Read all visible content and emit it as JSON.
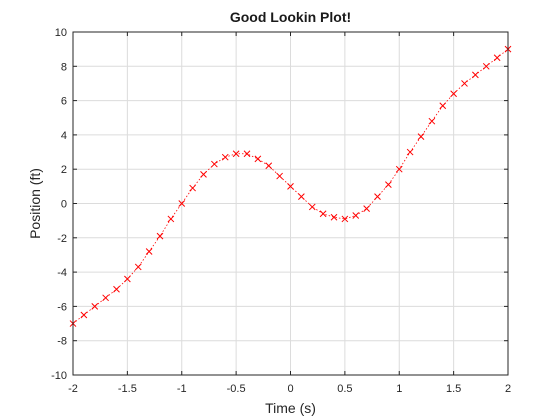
{
  "chart_data": {
    "type": "line",
    "title": "Good Lookin Plot!",
    "xlabel": "Time (s)",
    "ylabel": "Position (ft)",
    "xlim": [
      -2,
      2
    ],
    "ylim": [
      -10,
      10
    ],
    "xticks": [
      -2,
      -1.5,
      -1,
      -0.5,
      0,
      0.5,
      1,
      1.5,
      2
    ],
    "xtick_labels": [
      "-2",
      "-1.5",
      "-1",
      "-0.5",
      "0",
      "0.5",
      "1",
      "1.5",
      "2"
    ],
    "yticks": [
      -10,
      -8,
      -6,
      -4,
      -2,
      0,
      2,
      4,
      6,
      8,
      10
    ],
    "ytick_labels": [
      "-10",
      "-8",
      "-6",
      "-4",
      "-2",
      "0",
      "2",
      "4",
      "6",
      "8",
      "10"
    ],
    "grid": true,
    "series": [
      {
        "color": "#ff0000",
        "marker": "x",
        "line_style": "dotted",
        "x": [
          -2.0,
          -1.9,
          -1.8,
          -1.7,
          -1.6,
          -1.5,
          -1.4,
          -1.3,
          -1.2,
          -1.1,
          -1.0,
          -0.9,
          -0.8,
          -0.7,
          -0.6,
          -0.5,
          -0.4,
          -0.3,
          -0.2,
          -0.1,
          0.0,
          0.1,
          0.2,
          0.3,
          0.4,
          0.5,
          0.6,
          0.7,
          0.8,
          0.9,
          1.0,
          1.1,
          1.2,
          1.3,
          1.4,
          1.5,
          1.6,
          1.7,
          1.8,
          1.9,
          2.0
        ],
        "y": [
          -7.0,
          -6.5,
          -6.0,
          -5.5,
          -5.0,
          -4.4,
          -3.7,
          -2.8,
          -1.9,
          -0.9,
          0.0,
          0.9,
          1.7,
          2.3,
          2.7,
          2.9,
          2.9,
          2.6,
          2.2,
          1.6,
          1.0,
          0.4,
          -0.2,
          -0.6,
          -0.8,
          -0.9,
          -0.7,
          -0.3,
          0.4,
          1.1,
          2.0,
          3.0,
          3.9,
          4.8,
          5.7,
          6.4,
          7.0,
          7.5,
          8.0,
          8.5,
          9.0
        ]
      }
    ]
  }
}
